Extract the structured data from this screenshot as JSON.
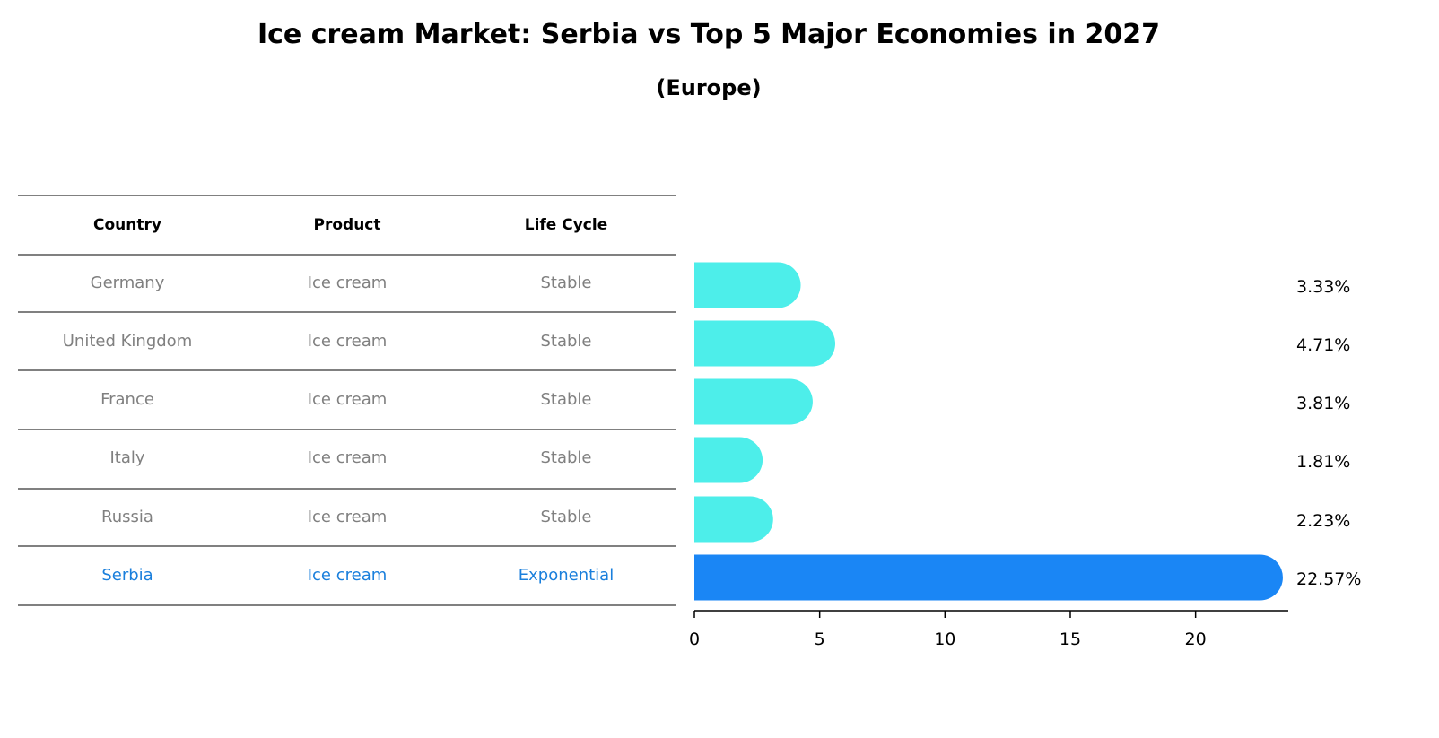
{
  "title": "Ice cream Market: Serbia vs Top 5 Major Economies in 2027",
  "subtitle": "(Europe)",
  "table": {
    "headers": [
      "Country",
      "Product",
      "Life Cycle"
    ],
    "rows": [
      [
        "Germany",
        "Ice cream",
        "Stable"
      ],
      [
        "United Kingdom",
        "Ice cream",
        "Stable"
      ],
      [
        "France",
        "Ice cream",
        "Stable"
      ],
      [
        "Italy",
        "Ice cream",
        "Stable"
      ],
      [
        "Russia",
        "Ice cream",
        "Stable"
      ],
      [
        "Serbia",
        "Ice cream",
        "Exponential"
      ]
    ],
    "highlight_row": 5
  },
  "chart_data": {
    "type": "bar",
    "orientation": "horizontal",
    "categories": [
      "Germany",
      "United Kingdom",
      "France",
      "Italy",
      "Russia",
      "Serbia"
    ],
    "values": [
      3.33,
      4.71,
      3.81,
      1.81,
      2.23,
      22.57
    ],
    "value_labels": [
      "3.33%",
      "4.71%",
      "3.81%",
      "1.81%",
      "2.23%",
      "22.57%"
    ],
    "xlim": [
      0,
      23.7
    ],
    "xticks": [
      0,
      5,
      10,
      15,
      20
    ],
    "xlabel": "",
    "ylabel": "",
    "grid": false,
    "colors": {
      "default": "#4deeea",
      "highlight": "#1a86f5"
    }
  }
}
